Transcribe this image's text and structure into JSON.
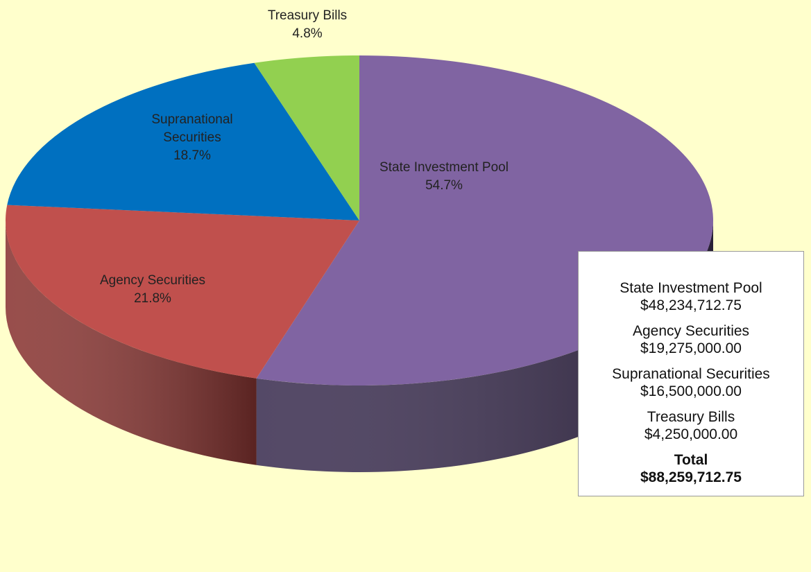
{
  "chart_data": {
    "type": "pie",
    "categories": [
      "State Investment Pool",
      "Agency Securities",
      "Supranational Securities",
      "Treasury Bills"
    ],
    "values": [
      54.7,
      21.8,
      18.7,
      4.8
    ],
    "value_labels": [
      "54.7%",
      "21.8%",
      "18.7%",
      "4.8%"
    ],
    "colors": [
      "#8064a2",
      "#c0504d",
      "#0070c0",
      "#92d050"
    ],
    "side_colors": [
      "#3d3052",
      "#8a3633",
      "#004a80",
      "#5f8a30"
    ],
    "summary": {
      "amounts": [
        "$48,234,712.75",
        "$19,275,000.00",
        "$16,500,000.00",
        "$4,250,000.00"
      ],
      "total_label": "Total",
      "total": "$88,259,712.75"
    }
  }
}
